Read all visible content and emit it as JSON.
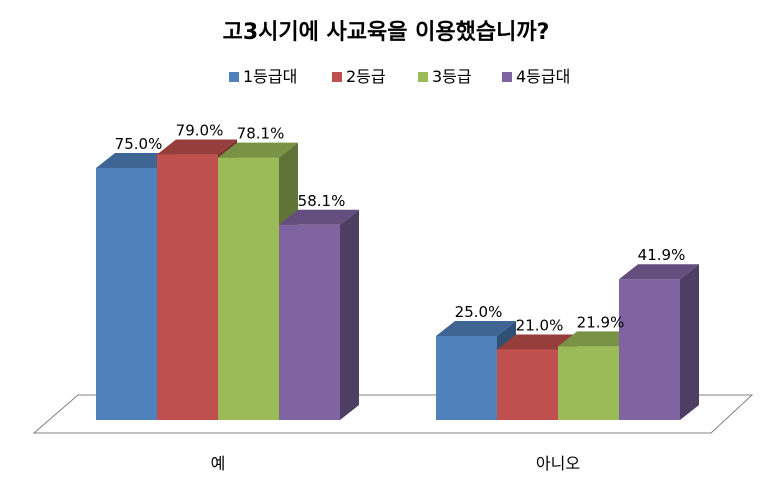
{
  "chart_data": {
    "type": "bar",
    "title": "고3시기에 사교육을 이용했습니까?",
    "categories": [
      "예",
      "아니오"
    ],
    "series": [
      {
        "name": "1등급대",
        "values": [
          75.0,
          25.0
        ],
        "labels": [
          "75.0%",
          "25.0%"
        ],
        "color": "#4F81BD"
      },
      {
        "name": "2등급",
        "values": [
          79.0,
          21.0
        ],
        "labels": [
          "79.0%",
          "21.0%"
        ],
        "color": "#C0504D"
      },
      {
        "name": "3등급",
        "values": [
          78.1,
          21.9
        ],
        "labels": [
          "78.1%",
          "21.9%"
        ],
        "color": "#9BBB59"
      },
      {
        "name": "4등급대",
        "values": [
          58.1,
          41.9
        ],
        "labels": [
          "58.1%",
          "41.9%"
        ],
        "color": "#8064A2"
      }
    ],
    "ylim": [
      0,
      100
    ],
    "grid": false,
    "legend_position": "top",
    "style": "3d-clustered-column"
  }
}
